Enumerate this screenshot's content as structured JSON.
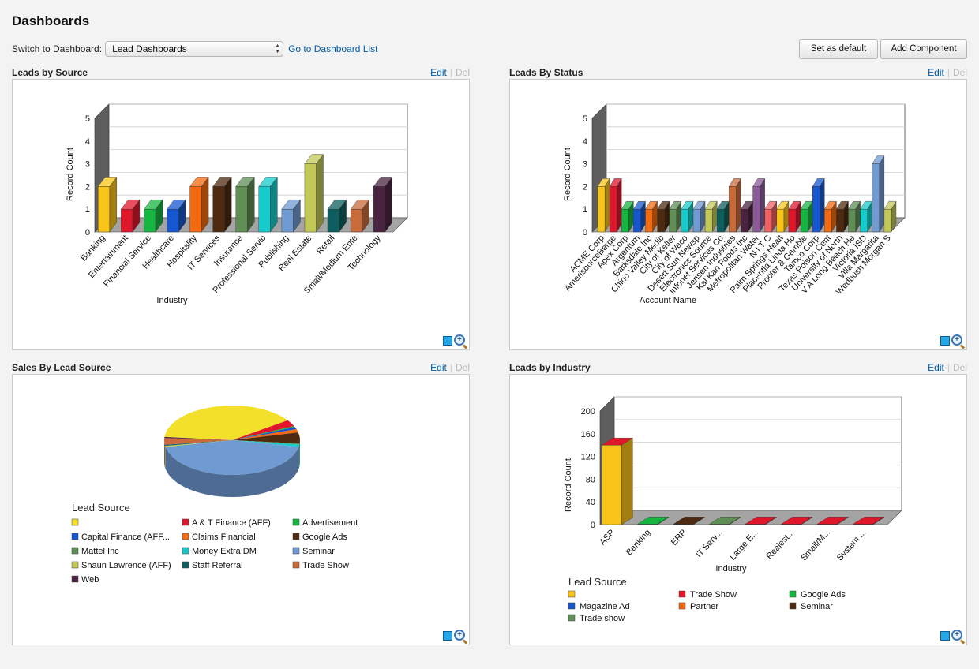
{
  "header": {
    "title": "Dashboards",
    "switch_label": "Switch to Dashboard:",
    "dashboard_select": "Lead Dashboards",
    "go_to_list": "Go to Dashboard List",
    "set_default": "Set as default",
    "add_component": "Add Component"
  },
  "panel_actions": {
    "edit": "Edit",
    "sep": "|",
    "del": "Del"
  },
  "panels": [
    {
      "title": "Leads by Source"
    },
    {
      "title": "Leads By Status"
    },
    {
      "title": "Sales By Lead Source"
    },
    {
      "title": "Leads by Industry"
    }
  ],
  "chart_data": [
    {
      "type": "bar",
      "xlabel": "Industry",
      "ylabel": "Record Count",
      "ylim": [
        0,
        5
      ],
      "yticks": [
        "0",
        "1",
        "2",
        "3",
        "4",
        "5"
      ],
      "categories": [
        "Banking",
        "Entertainment",
        "Financial Service",
        "Healthcare",
        "Hospitality",
        "IT Services",
        "Insurance",
        "Professional Servic",
        "Publishing",
        "Real Estate",
        "Retail",
        "Small/Medium Ente",
        "Technology"
      ],
      "values": [
        2,
        1,
        1,
        1,
        2,
        2,
        2,
        2,
        1,
        3,
        1,
        1,
        2
      ],
      "colors": [
        "#f9c418",
        "#e0162b",
        "#15b640",
        "#1557d0",
        "#f36a10",
        "#4d2a10",
        "#5f8f55",
        "#15cbcb",
        "#6f9ad2",
        "#c2c858",
        "#0d5f5f",
        "#c86a3a",
        "#4a2340"
      ]
    },
    {
      "type": "bar",
      "xlabel": "Account Name",
      "ylabel": "Record Count",
      "ylim": [
        0,
        5
      ],
      "yticks": [
        "0",
        "1",
        "2",
        "3",
        "4",
        "5"
      ],
      "categories": [
        "ACME Corp",
        "AmerisourceBerge",
        "Apex Corp",
        "Argentum",
        "Barksdale Inc",
        "Chino Valley Medic",
        "City of Keller",
        "City of Waco",
        "Desert Sun Newsp",
        "Electronics Source",
        "Infonet Services Co",
        "Jensen Industries",
        "Kal Kan Foods Inc",
        "Metropolitan Water",
        "N I T C",
        "Palm Springs Healt",
        "Placentia Linda Ho",
        "Procter & Gamble",
        "Tamco Corp",
        "Texas Poison Cent",
        "University of North",
        "V A Long Beach He",
        "Victoria ISD",
        "Villa Margarita",
        "Wedbush Morgan S"
      ],
      "values": [
        2,
        2,
        1,
        1,
        1,
        1,
        1,
        1,
        1,
        1,
        1,
        2,
        1,
        2,
        1,
        1,
        1,
        1,
        2,
        1,
        1,
        1,
        1,
        3,
        1
      ],
      "colors": [
        "#f9c418",
        "#e0162b",
        "#15b640",
        "#1557d0",
        "#f36a10",
        "#4d2a10",
        "#5f8f55",
        "#15cbcb",
        "#6f9ad2",
        "#c2c858",
        "#0d5f5f",
        "#c86a3a",
        "#4a2340",
        "#8a5a9a",
        "#f06060",
        "#f9c418",
        "#e0162b",
        "#15b640",
        "#1557d0",
        "#f36a10",
        "#4d2a10",
        "#5f8f55",
        "#15cbcb",
        "#6f9ad2",
        "#c2c858"
      ]
    },
    {
      "type": "pie",
      "legend_title": "Lead Source",
      "categories": [
        "",
        "A & T Finance (AFF)",
        "Advertisement",
        "Capital Finance (AFF...",
        "Claims Financial",
        "Google Ads",
        "Mattel Inc",
        "Money Extra DM",
        "Seminar",
        "Shaun Lawrence (AFF)",
        "Staff Referral",
        "Trade Show",
        "Web"
      ],
      "values": [
        38,
        3,
        0.5,
        1,
        1.5,
        5,
        0.5,
        1,
        43,
        0.5,
        0.5,
        3,
        0.5
      ],
      "colors": [
        "#f2e02a",
        "#e0162b",
        "#15b640",
        "#1557d0",
        "#f36a10",
        "#4d2a10",
        "#5f8f55",
        "#15cbcb",
        "#6f9ad2",
        "#c2c858",
        "#0d5f5f",
        "#c86a3a",
        "#4a2340"
      ]
    },
    {
      "type": "bar",
      "stacked": true,
      "xlabel": "Industry",
      "ylabel": "Record Count",
      "ylim": [
        0,
        200
      ],
      "yticks": [
        "0",
        "40",
        "80",
        "120",
        "160",
        "200"
      ],
      "categories": [
        "ASP",
        "Banking",
        "ERP",
        "IT Serv...",
        "Large E...",
        "Realest...",
        "Small/M...",
        "System ..."
      ],
      "values": [
        140,
        1,
        1,
        1,
        1,
        1,
        1,
        1
      ],
      "bar_colors": [
        "#f9c418",
        "#15b640",
        "#4d2a10",
        "#5f8f55",
        "#e0162b",
        "#e0162b",
        "#e0162b",
        "#e0162b"
      ],
      "top_colors": [
        "#e0162b",
        "#15b640",
        "#4d2a10",
        "#5f8f55",
        "#e0162b",
        "#e0162b",
        "#e0162b",
        "#e0162b"
      ],
      "legend_title": "Lead Source",
      "legend": [
        "",
        "Trade Show",
        "Google Ads",
        "Magazine Ad",
        "Partner",
        "Seminar",
        "Trade show"
      ],
      "legend_colors": [
        "#f9c418",
        "#e0162b",
        "#15b640",
        "#1557d0",
        "#f36a10",
        "#4d2a10",
        "#5f8f55"
      ]
    }
  ]
}
